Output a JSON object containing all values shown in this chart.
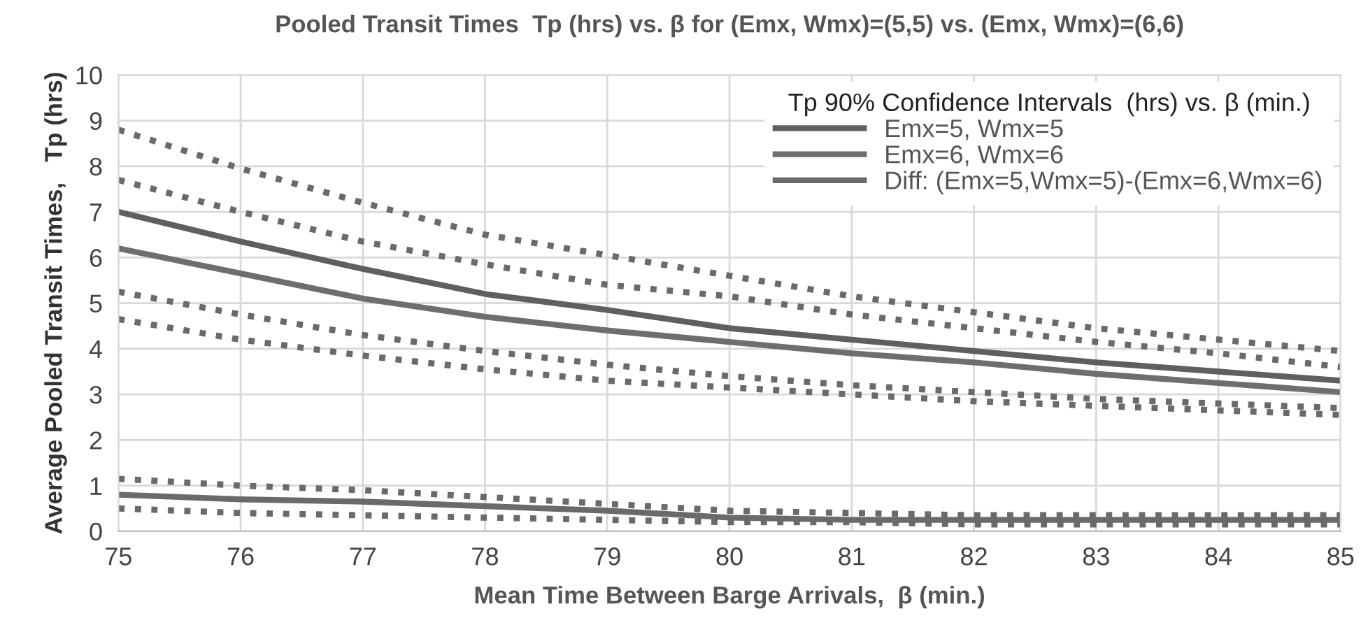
{
  "chart_data": {
    "type": "line",
    "title": "Pooled Transit Times  Tp (hrs) vs. β for (Emx, Wmx)=(5,5) vs. (Emx, Wmx)=(6,6)",
    "xlabel": "Mean Time Between Barge Arrivals,  β (min.)",
    "ylabel": "Average Pooled Transit Times,   Tp (hrs)",
    "legend_title": "Tp 90% Confidence Intervals  (hrs) vs. β (min.)",
    "x": [
      75,
      76,
      77,
      78,
      79,
      80,
      81,
      82,
      83,
      84,
      85
    ],
    "series": [
      {
        "name": "Emx=5, Wmx=5",
        "color": "#5f5f5f",
        "values": [
          7.0,
          6.35,
          5.75,
          5.2,
          4.85,
          4.45,
          4.2,
          3.95,
          3.7,
          3.5,
          3.3
        ]
      },
      {
        "name": "Emx=6, Wmx=6",
        "color": "#6e6e6e",
        "values": [
          6.2,
          5.65,
          5.1,
          4.7,
          4.4,
          4.15,
          3.9,
          3.7,
          3.45,
          3.25,
          3.05
        ]
      },
      {
        "name": "Diff: (Emx=5,Wmx=5)-(Emx=6,Wmx=6)",
        "color": "#6a6a6a",
        "values": [
          0.8,
          0.7,
          0.65,
          0.55,
          0.45,
          0.3,
          0.25,
          0.25,
          0.25,
          0.25,
          0.25
        ]
      },
      {
        "color": "#6a6a6a",
        "line_style": "dotted",
        "values": [
          8.8,
          7.95,
          7.2,
          6.5,
          6.05,
          5.6,
          5.15,
          4.8,
          4.45,
          4.2,
          3.95
        ]
      },
      {
        "color": "#6a6a6a",
        "line_style": "dotted",
        "values": [
          7.7,
          7.0,
          6.35,
          5.85,
          5.4,
          5.15,
          4.75,
          4.45,
          4.15,
          3.9,
          3.6
        ]
      },
      {
        "color": "#6a6a6a",
        "line_style": "dotted",
        "values": [
          5.25,
          4.75,
          4.3,
          3.95,
          3.65,
          3.4,
          3.2,
          3.05,
          2.9,
          2.8,
          2.7
        ]
      },
      {
        "color": "#6a6a6a",
        "line_style": "dotted",
        "values": [
          4.65,
          4.2,
          3.85,
          3.55,
          3.3,
          3.15,
          3.0,
          2.85,
          2.75,
          2.65,
          2.55
        ]
      },
      {
        "color": "#6a6a6a",
        "line_style": "dotted",
        "values": [
          1.15,
          1.0,
          0.9,
          0.75,
          0.6,
          0.45,
          0.4,
          0.35,
          0.35,
          0.35,
          0.35
        ]
      },
      {
        "color": "#6a6a6a",
        "line_style": "dotted",
        "values": [
          0.5,
          0.4,
          0.35,
          0.3,
          0.25,
          0.2,
          0.2,
          0.15,
          0.15,
          0.15,
          0.15
        ]
      }
    ],
    "xlim": [
      75,
      85
    ],
    "xticks": [
      75,
      76,
      77,
      78,
      79,
      80,
      81,
      82,
      83,
      84,
      85
    ],
    "ylim": [
      0,
      10
    ],
    "yticks": [
      0,
      1,
      2,
      3,
      4,
      5,
      6,
      7,
      8,
      9,
      10
    ],
    "grid": true,
    "legend": "top right",
    "line_style": "solid"
  }
}
